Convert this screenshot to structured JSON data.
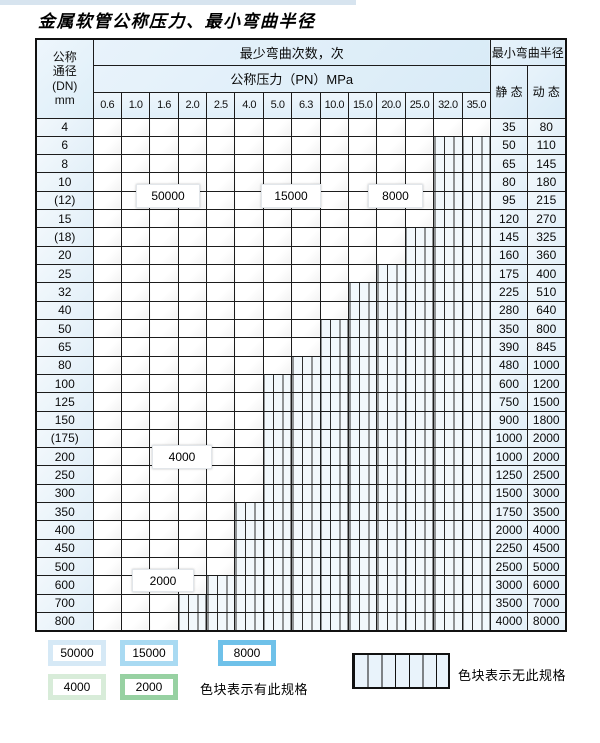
{
  "page": {
    "title": "金属软管公称压力、最小弯曲半径"
  },
  "colors": {
    "b1": "#d6e9f6",
    "b2": "#a9daf2",
    "b3": "#6fc1e9",
    "g1": "#d8ecd9",
    "g2": "#97d1a2"
  },
  "table": {
    "header": {
      "dn_label_lines": [
        "公称",
        "通径",
        "(DN)",
        "mm"
      ],
      "bend_cycles_label": "最少弯曲次数，次",
      "pressure_label": "公称压力（PN）MPa",
      "pressure_columns": [
        "0.6",
        "1.0",
        "1.6",
        "2.0",
        "2.5",
        "4.0",
        "5.0",
        "6.3",
        "10.0",
        "15.0",
        "20.0",
        "25.0",
        "32.0",
        "35.0"
      ],
      "radius_label": "最小弯曲半径",
      "static_label": "静 态",
      "dynamic_label": "动 态"
    },
    "cell_legend_meaning": {
      "b1": "50000",
      "b2": "15000",
      "b3": "8000",
      "g1": "4000",
      "g2": "2000",
      "h": "无此规格"
    },
    "rows": [
      {
        "dn": "4",
        "cells": [
          "b1",
          "b1",
          "b1",
          "b1",
          "b1",
          "b2",
          "b2",
          "b2",
          "b3",
          "b3",
          "b3",
          "b3",
          "b3",
          "b3"
        ],
        "static": "35",
        "dynamic": "80"
      },
      {
        "dn": "6",
        "cells": [
          "b1",
          "b1",
          "b1",
          "b1",
          "b1",
          "b2",
          "b2",
          "b2",
          "b3",
          "b3",
          "b3",
          "b3",
          "h",
          "h"
        ],
        "static": "50",
        "dynamic": "110"
      },
      {
        "dn": "8",
        "cells": [
          "b1",
          "b1",
          "b1",
          "b1",
          "b1",
          "b2",
          "b2",
          "b2",
          "b3",
          "b3",
          "b3",
          "b3",
          "h",
          "h"
        ],
        "static": "65",
        "dynamic": "145"
      },
      {
        "dn": "10",
        "cells": [
          "b1",
          "b1",
          "b1",
          "b1",
          "b1",
          "b2",
          "b2",
          "b2",
          "b3",
          "b3",
          "b3",
          "b3",
          "h",
          "h"
        ],
        "static": "80",
        "dynamic": "180"
      },
      {
        "dn": "(12)",
        "cells": [
          "b1",
          "b1",
          "b1",
          "b1",
          "b1",
          "b2",
          "b2",
          "b2",
          "b3",
          "b3",
          "b3",
          "b3",
          "h",
          "h"
        ],
        "static": "95",
        "dynamic": "215"
      },
      {
        "dn": "15",
        "cells": [
          "b1",
          "b1",
          "b1",
          "b1",
          "b1",
          "b2",
          "b2",
          "b2",
          "b3",
          "b3",
          "b3",
          "b3",
          "h",
          "h"
        ],
        "static": "120",
        "dynamic": "270"
      },
      {
        "dn": "(18)",
        "cells": [
          "b1",
          "b1",
          "b1",
          "b1",
          "b1",
          "b2",
          "b2",
          "b2",
          "b3",
          "b3",
          "b3",
          "h",
          "h",
          "h"
        ],
        "static": "145",
        "dynamic": "325"
      },
      {
        "dn": "20",
        "cells": [
          "b1",
          "b1",
          "b1",
          "b1",
          "b1",
          "b2",
          "b2",
          "b2",
          "b3",
          "b3",
          "b3",
          "h",
          "h",
          "h"
        ],
        "static": "160",
        "dynamic": "360"
      },
      {
        "dn": "25",
        "cells": [
          "b1",
          "b1",
          "b1",
          "b1",
          "b1",
          "b2",
          "b2",
          "b2",
          "b3",
          "b3",
          "h",
          "h",
          "h",
          "h"
        ],
        "static": "175",
        "dynamic": "400"
      },
      {
        "dn": "32",
        "cells": [
          "b1",
          "b1",
          "b1",
          "b1",
          "b1",
          "b2",
          "b2",
          "b3",
          "b3",
          "h",
          "h",
          "h",
          "h",
          "h"
        ],
        "static": "225",
        "dynamic": "510"
      },
      {
        "dn": "40",
        "cells": [
          "b1",
          "b1",
          "b1",
          "b1",
          "b1",
          "b2",
          "b2",
          "b3",
          "b3",
          "h",
          "h",
          "h",
          "h",
          "h"
        ],
        "static": "280",
        "dynamic": "640"
      },
      {
        "dn": "50",
        "cells": [
          "b1",
          "b1",
          "b1",
          "b1",
          "b2",
          "b2",
          "b3",
          "b3",
          "h",
          "h",
          "h",
          "h",
          "h",
          "h"
        ],
        "static": "350",
        "dynamic": "800"
      },
      {
        "dn": "65",
        "cells": [
          "b1",
          "b1",
          "b2",
          "b2",
          "b2",
          "b3",
          "b3",
          "b3",
          "h",
          "h",
          "h",
          "h",
          "h",
          "h"
        ],
        "static": "390",
        "dynamic": "845"
      },
      {
        "dn": "80",
        "cells": [
          "b1",
          "b1",
          "b2",
          "b2",
          "b2",
          "b3",
          "b3",
          "h",
          "h",
          "h",
          "h",
          "h",
          "h",
          "h"
        ],
        "static": "480",
        "dynamic": "1000"
      },
      {
        "dn": "100",
        "cells": [
          "g1",
          "g1",
          "g1",
          "g1",
          "g1",
          "g1",
          "h",
          "h",
          "h",
          "h",
          "h",
          "h",
          "h",
          "h"
        ],
        "static": "600",
        "dynamic": "1200"
      },
      {
        "dn": "125",
        "cells": [
          "g1",
          "g1",
          "g1",
          "g1",
          "g1",
          "g1",
          "h",
          "h",
          "h",
          "h",
          "h",
          "h",
          "h",
          "h"
        ],
        "static": "750",
        "dynamic": "1500"
      },
      {
        "dn": "150",
        "cells": [
          "g1",
          "g1",
          "g1",
          "g1",
          "g1",
          "g1",
          "h",
          "h",
          "h",
          "h",
          "h",
          "h",
          "h",
          "h"
        ],
        "static": "900",
        "dynamic": "1800"
      },
      {
        "dn": "(175)",
        "cells": [
          "g1",
          "g1",
          "g1",
          "g1",
          "g1",
          "g1",
          "h",
          "h",
          "h",
          "h",
          "h",
          "h",
          "h",
          "h"
        ],
        "static": "1000",
        "dynamic": "2000"
      },
      {
        "dn": "200",
        "cells": [
          "g1",
          "g1",
          "g1",
          "g1",
          "g1",
          "g1",
          "h",
          "h",
          "h",
          "h",
          "h",
          "h",
          "h",
          "h"
        ],
        "static": "1000",
        "dynamic": "2000"
      },
      {
        "dn": "250",
        "cells": [
          "g1",
          "g1",
          "g1",
          "g1",
          "g1",
          "g1",
          "h",
          "h",
          "h",
          "h",
          "h",
          "h",
          "h",
          "h"
        ],
        "static": "1250",
        "dynamic": "2500"
      },
      {
        "dn": "300",
        "cells": [
          "g1",
          "g1",
          "g1",
          "g1",
          "g1",
          "g1",
          "h",
          "h",
          "h",
          "h",
          "h",
          "h",
          "h",
          "h"
        ],
        "static": "1500",
        "dynamic": "3000"
      },
      {
        "dn": "350",
        "cells": [
          "g2",
          "g2",
          "g2",
          "g2",
          "g2",
          "h",
          "h",
          "h",
          "h",
          "h",
          "h",
          "h",
          "h",
          "h"
        ],
        "static": "1750",
        "dynamic": "3500"
      },
      {
        "dn": "400",
        "cells": [
          "g2",
          "g2",
          "g2",
          "g2",
          "g2",
          "h",
          "h",
          "h",
          "h",
          "h",
          "h",
          "h",
          "h",
          "h"
        ],
        "static": "2000",
        "dynamic": "4000"
      },
      {
        "dn": "450",
        "cells": [
          "g2",
          "g2",
          "g2",
          "g2",
          "g2",
          "h",
          "h",
          "h",
          "h",
          "h",
          "h",
          "h",
          "h",
          "h"
        ],
        "static": "2250",
        "dynamic": "4500"
      },
      {
        "dn": "500",
        "cells": [
          "g2",
          "g2",
          "g2",
          "g2",
          "g2",
          "h",
          "h",
          "h",
          "h",
          "h",
          "h",
          "h",
          "h",
          "h"
        ],
        "static": "2500",
        "dynamic": "5000"
      },
      {
        "dn": "600",
        "cells": [
          "g2",
          "g2",
          "g2",
          "g2",
          "h",
          "h",
          "h",
          "h",
          "h",
          "h",
          "h",
          "h",
          "h",
          "h"
        ],
        "static": "3000",
        "dynamic": "6000"
      },
      {
        "dn": "700",
        "cells": [
          "g2",
          "g2",
          "g2",
          "h",
          "h",
          "h",
          "h",
          "h",
          "h",
          "h",
          "h",
          "h",
          "h",
          "h"
        ],
        "static": "3500",
        "dynamic": "7000"
      },
      {
        "dn": "800",
        "cells": [
          "g2",
          "g2",
          "g2",
          "h",
          "h",
          "h",
          "h",
          "h",
          "h",
          "h",
          "h",
          "h",
          "h",
          "h"
        ],
        "static": "4000",
        "dynamic": "8000"
      }
    ]
  },
  "overlays": [
    {
      "text": "50000"
    },
    {
      "text": "15000"
    },
    {
      "text": "8000"
    },
    {
      "text": "4000"
    },
    {
      "text": "2000"
    }
  ],
  "legend": {
    "items": [
      {
        "label": "50000"
      },
      {
        "label": "15000"
      },
      {
        "label": "8000"
      },
      {
        "label": "4000"
      },
      {
        "label": "2000"
      }
    ],
    "has_spec_text": "色块表示有此规格",
    "no_spec_text": "色块表示无此规格"
  }
}
